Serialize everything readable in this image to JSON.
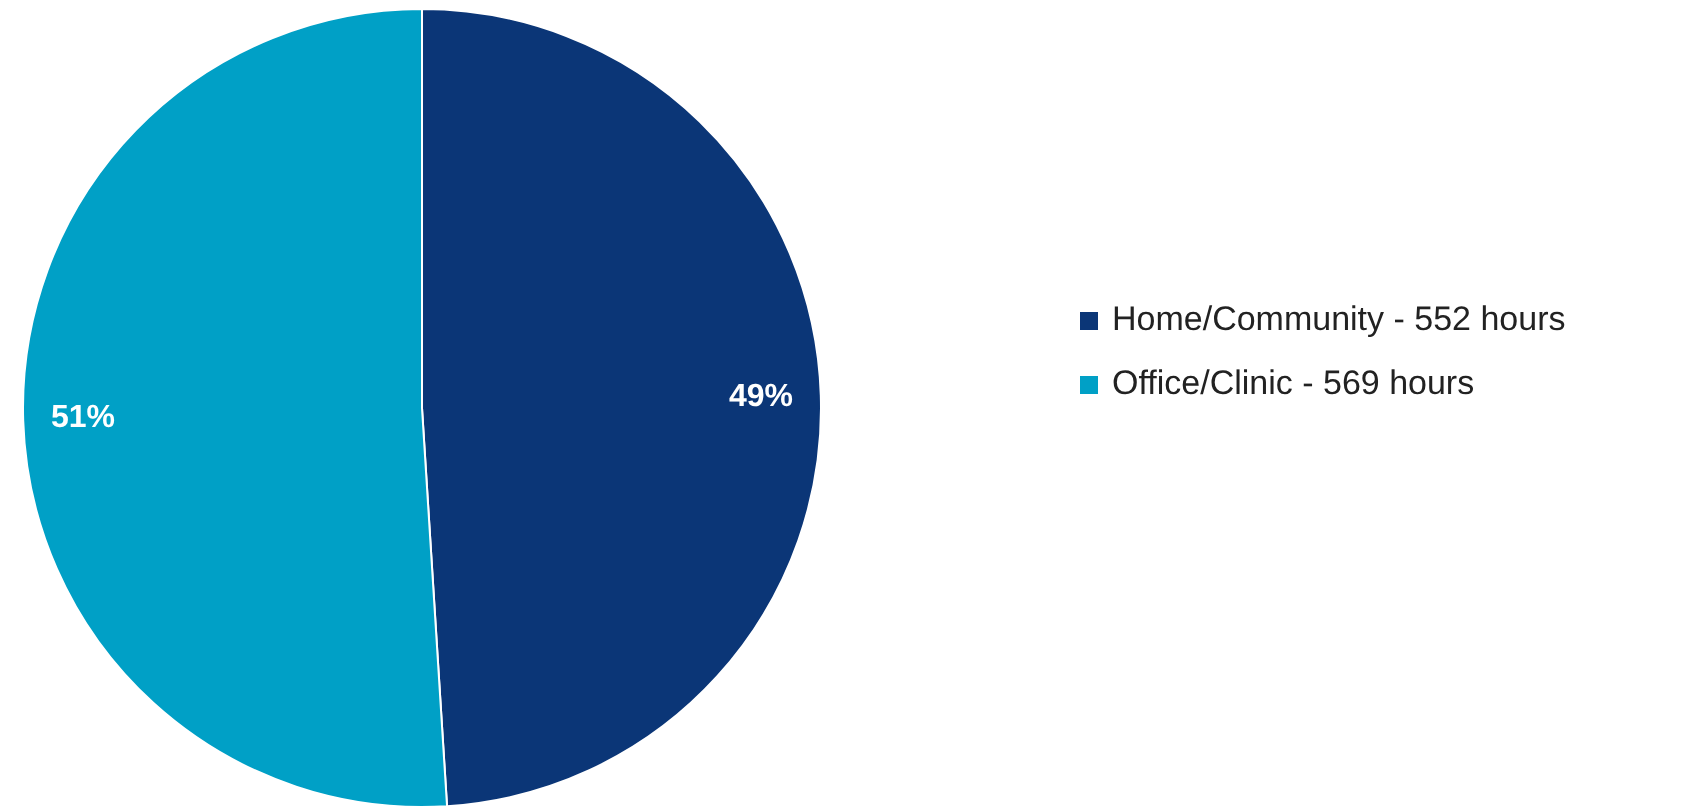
{
  "chart_data": {
    "type": "pie",
    "categories": [
      "Home/Community - 552 hours",
      "Office/Clinic - 569 hours"
    ],
    "values": [
      49,
      51
    ],
    "colors": [
      "#0b3677",
      "#00a0c6"
    ],
    "value_labels": [
      "49%",
      "51%"
    ],
    "legend": "right"
  }
}
